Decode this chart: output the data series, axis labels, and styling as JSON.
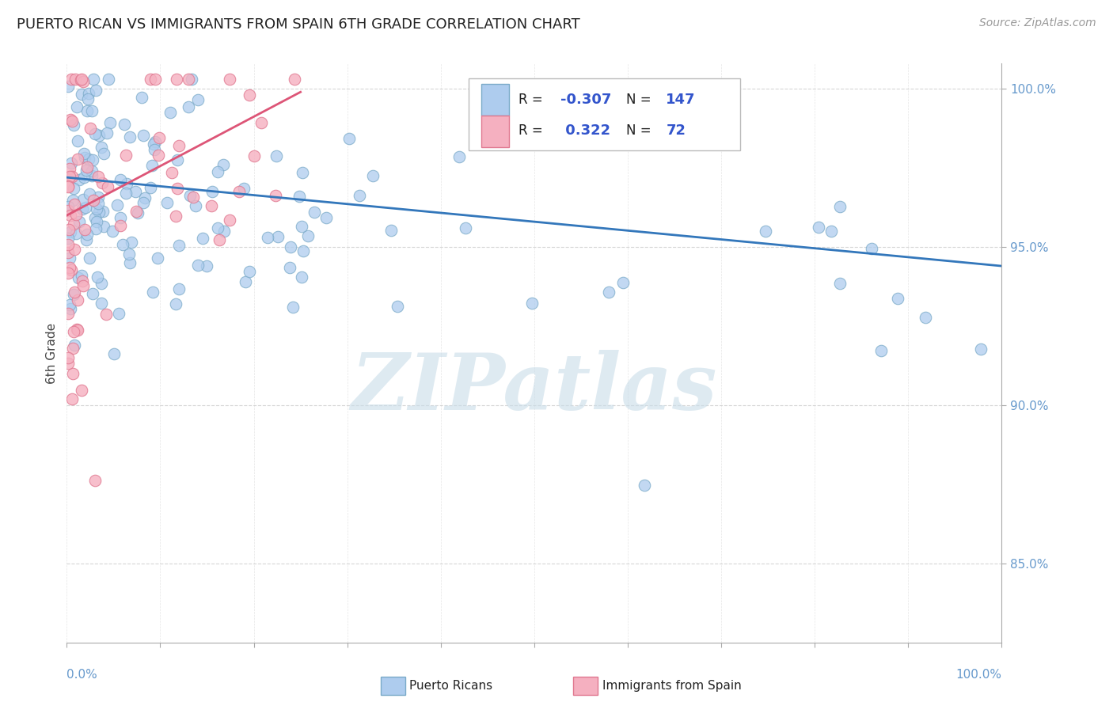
{
  "title": "PUERTO RICAN VS IMMIGRANTS FROM SPAIN 6TH GRADE CORRELATION CHART",
  "source_text": "Source: ZipAtlas.com",
  "ylabel": "6th Grade",
  "xlim": [
    0.0,
    1.0
  ],
  "ylim": [
    0.825,
    1.008
  ],
  "blue_R": -0.307,
  "blue_N": 147,
  "pink_R": 0.322,
  "pink_N": 72,
  "blue_color": "#aeccee",
  "blue_edge": "#7aaac8",
  "pink_color": "#f5b0c0",
  "pink_edge": "#e07890",
  "blue_line_color": "#3377bb",
  "pink_line_color": "#dd5577",
  "watermark_text": "ZIPatlas",
  "watermark_color": "#c8dce8",
  "legend_R_color": "#3355cc",
  "legend_N_color": "#3355cc",
  "background_color": "#ffffff",
  "grid_color": "#cccccc",
  "axis_label_color": "#6699cc",
  "yticks": [
    0.85,
    0.9,
    0.95,
    1.0
  ],
  "ytick_labels": [
    "85.0%",
    "90.0%",
    "95.0%",
    "100.0%"
  ]
}
